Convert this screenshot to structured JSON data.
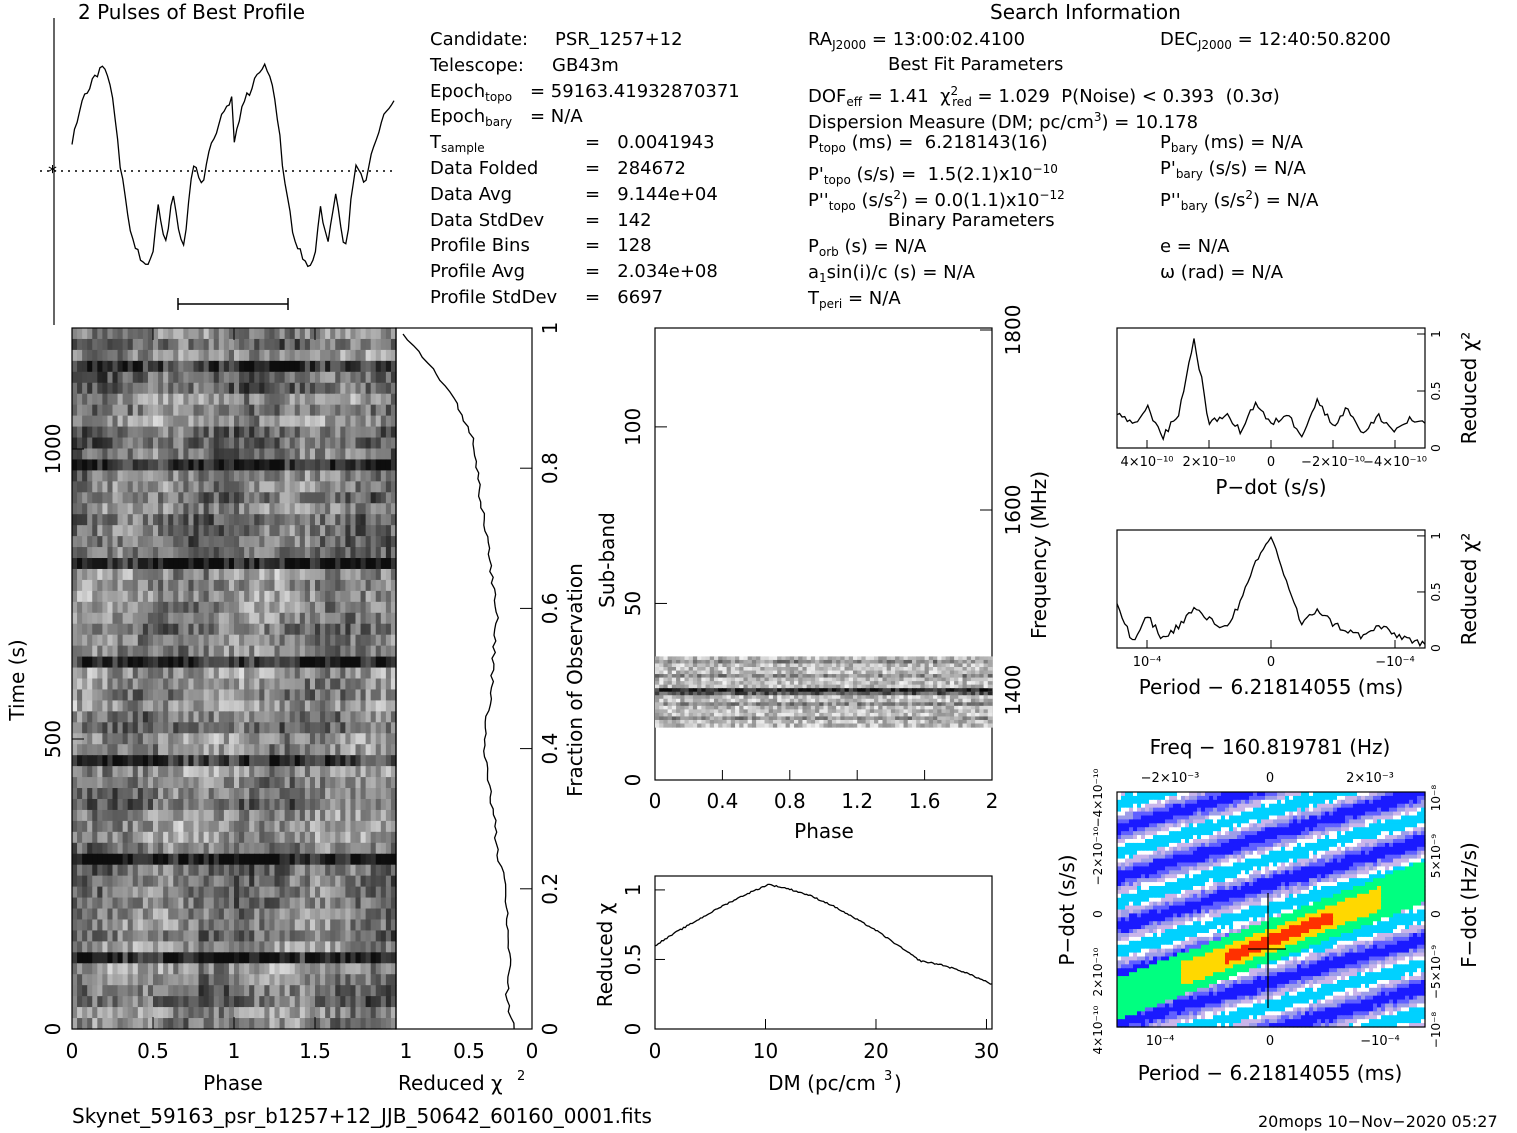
{
  "profile_title": "2 Pulses of Best Profile",
  "search_title": "Search Information",
  "candidate_info": [
    {
      "label": "Candidate:",
      "value": "PSR_1257+12"
    },
    {
      "label": "Telescope:",
      "value": "GB43m"
    },
    {
      "label": "Epoch_topo",
      "value": "= 59163.41932870371"
    },
    {
      "label": "Epoch_bary",
      "value": "= N/A"
    },
    {
      "label": "T_sample",
      "value": "=   0.0041943"
    },
    {
      "label": "Data Folded",
      "value": "=   284672"
    },
    {
      "label": "Data Avg",
      "value": "=   9.144e+04"
    },
    {
      "label": "Data StdDev",
      "value": "=   142"
    },
    {
      "label": "Profile Bins",
      "value": "=   128"
    },
    {
      "label": "Profile Avg",
      "value": "=   2.034e+08"
    },
    {
      "label": "Profile StdDev",
      "value": "=   6697"
    }
  ],
  "search_info": {
    "ra": "RA_J2000 = 13:00:02.4100",
    "dec": "DEC_J2000 = 12:40:50.8200",
    "best_fit_heading": "Best Fit Parameters",
    "dof": "DOF_eff = 1.41  χ²_red = 1.029  P(Noise) < 0.393  (0.3σ)",
    "dm": "Dispersion Measure (DM; pc/cm³) = 10.178",
    "p_topo": "P_topo (ms) =  6.218143(16)",
    "p_bary": "P_bary (ms) = N/A",
    "pd_topo": "P'_topo (s/s) =  1.5(2.1)×10⁻¹⁰",
    "pd_bary": "P'_bary (s/s) = N/A",
    "pdd_topo": "P''_topo (s/s²) = 0.0(1.1)×10⁻¹²",
    "pdd_bary": "P''_bary (s/s²) = N/A",
    "binary_heading": "Binary Parameters",
    "porb": "P_orb (s) = N/A",
    "e": "e = N/A",
    "a1sini": "a1sin(i)/c (s) = N/A",
    "omega": "ω (rad) = N/A",
    "tperi": "T_peri = N/A"
  },
  "footer": {
    "filename": "Skynet_59163_psr_b1257+12_JJB_50642_60160_0001.fits",
    "stamp": "20mops 10−Nov−2020 05:27"
  },
  "chart_data": [
    {
      "name": "profile",
      "type": "line",
      "title": "2 Pulses of Best Profile",
      "xlim": [
        0,
        2
      ],
      "values": [
        0.62,
        0.68,
        0.72,
        0.78,
        0.82,
        0.85,
        0.84,
        0.88,
        0.92,
        0.94,
        0.93,
        0.96,
        0.98,
        0.95,
        0.93,
        0.88,
        0.82,
        0.74,
        0.65,
        0.52,
        0.45,
        0.38,
        0.3,
        0.22,
        0.18,
        0.14,
        0.15,
        0.1,
        0.08,
        0.07,
        0.08,
        0.09,
        0.12,
        0.24,
        0.34,
        0.27,
        0.22,
        0.18,
        0.24,
        0.33,
        0.38,
        0.32,
        0.24,
        0.18,
        0.16,
        0.24,
        0.36,
        0.45,
        0.52,
        0.5,
        0.47,
        0.44,
        0.46,
        0.52,
        0.58,
        0.62,
        0.64,
        0.68,
        0.71,
        0.74,
        0.76,
        0.78,
        0.8,
        0.82,
        0.62,
        0.68,
        0.72,
        0.78,
        0.82,
        0.85,
        0.84,
        0.88,
        0.92,
        0.94,
        0.93,
        0.96,
        0.98,
        0.95,
        0.93,
        0.88,
        0.82,
        0.74,
        0.65,
        0.52,
        0.45,
        0.38,
        0.3,
        0.22,
        0.18,
        0.14,
        0.15,
        0.1,
        0.08,
        0.07,
        0.08,
        0.09,
        0.12,
        0.24,
        0.34,
        0.27,
        0.22,
        0.18,
        0.24,
        0.33,
        0.38,
        0.32,
        0.24,
        0.18,
        0.16,
        0.24,
        0.36,
        0.45,
        0.52,
        0.5,
        0.47,
        0.44,
        0.46,
        0.52,
        0.58,
        0.62,
        0.64,
        0.68,
        0.71,
        0.74,
        0.76,
        0.78,
        0.8,
        0.82
      ],
      "duty_bar": [
        0.65,
        1.35
      ]
    },
    {
      "name": "time-vs-phase",
      "type": "heatmap",
      "xlabel": "Phase",
      "ylabel": "Time (s)",
      "xlim": [
        0,
        2
      ],
      "ylim": [
        0,
        1194
      ],
      "xticks": [
        "0",
        "0.5",
        "1",
        "1.5"
      ],
      "yticks": [
        "0",
        "500",
        "1000"
      ]
    },
    {
      "name": "chi-vs-fraction",
      "type": "line",
      "xlabel": "Reduced χ²",
      "ylabel": "Fraction of Observation",
      "xticks": [
        "1",
        "0.5",
        "0"
      ],
      "yticks": [
        "0",
        "0.2",
        "0.4",
        "0.6",
        "0.8",
        "1"
      ],
      "fraction": [
        0,
        0.02,
        0.05,
        0.1,
        0.15,
        0.2,
        0.25,
        0.3,
        0.35,
        0.4,
        0.45,
        0.5,
        0.55,
        0.6,
        0.65,
        0.7,
        0.75,
        0.8,
        0.85,
        0.9,
        0.95,
        0.98,
        1.0
      ],
      "chi": [
        0.05,
        0.1,
        0.12,
        0.1,
        0.13,
        0.12,
        0.2,
        0.22,
        0.26,
        0.3,
        0.28,
        0.24,
        0.22,
        0.2,
        0.24,
        0.28,
        0.32,
        0.36,
        0.4,
        0.52,
        0.72,
        0.85,
        0.95
      ]
    },
    {
      "name": "subband-vs-phase",
      "type": "heatmap",
      "xlabel": "Phase",
      "ylabel": "Sub-band",
      "y2label": "Frequency (MHz)",
      "xlim": [
        0,
        2
      ],
      "ylim": [
        0,
        128
      ],
      "xticks": [
        "0",
        "0.4",
        "0.8",
        "1.2",
        "1.6",
        "2"
      ],
      "yticks": [
        "0",
        "50",
        "100"
      ],
      "y2ticks": [
        "1400",
        "1600",
        "1800"
      ],
      "active_band": [
        15,
        35
      ]
    },
    {
      "name": "chi-vs-dm",
      "type": "line",
      "xlabel": "DM (pc/cm³)",
      "ylabel": "Reduced χ²",
      "xlim": [
        0,
        30.5
      ],
      "ylim": [
        0,
        1.1
      ],
      "xticks": [
        "0",
        "10",
        "20",
        "30"
      ],
      "yticks": [
        "0",
        "0.5",
        "1"
      ],
      "x": [
        0,
        2,
        4,
        6,
        8,
        10,
        10.2,
        12,
        14,
        16,
        18,
        20,
        22,
        24,
        26,
        28,
        30,
        30.5
      ],
      "y": [
        0.6,
        0.7,
        0.79,
        0.88,
        0.96,
        1.03,
        1.04,
        1.01,
        0.96,
        0.89,
        0.8,
        0.71,
        0.6,
        0.49,
        0.46,
        0.41,
        0.34,
        0.32
      ]
    },
    {
      "name": "chi-vs-pdot",
      "type": "line",
      "xlabel": "P−dot (s/s)",
      "ylabel": "Reduced χ²",
      "xticks": [
        "4×10⁻¹⁰",
        "2×10⁻¹⁰",
        "0",
        "−2×10⁻¹⁰",
        "−4×10⁻¹⁰"
      ],
      "yticks": [
        "0",
        "0.5",
        "1"
      ],
      "x": [
        -1,
        -0.9,
        -0.8,
        -0.7,
        -0.6,
        -0.5,
        -0.45,
        -0.4,
        -0.3,
        -0.2,
        -0.1,
        0,
        0.1,
        0.2,
        0.3,
        0.4,
        0.5,
        0.6,
        0.7,
        0.8,
        0.9,
        1
      ],
      "y": [
        0.3,
        0.2,
        0.35,
        0.1,
        0.3,
        0.95,
        0.6,
        0.2,
        0.3,
        0.15,
        0.4,
        0.2,
        0.3,
        0.12,
        0.42,
        0.2,
        0.35,
        0.12,
        0.28,
        0.15,
        0.25,
        0.2
      ]
    },
    {
      "name": "chi-vs-period",
      "type": "line",
      "xlabel": "Period − 6.21814055 (ms)",
      "ylabel": "Reduced χ²",
      "xticks": [
        "10⁻⁴",
        "0",
        "−10⁻⁴"
      ],
      "yticks": [
        "0",
        "0.5",
        "1"
      ],
      "x": [
        -1,
        -0.9,
        -0.8,
        -0.7,
        -0.6,
        -0.5,
        -0.4,
        -0.3,
        -0.2,
        -0.1,
        0,
        0.1,
        0.2,
        0.3,
        0.4,
        0.5,
        0.6,
        0.7,
        0.8,
        0.9,
        1
      ],
      "y": [
        0.4,
        0.05,
        0.28,
        0.08,
        0.2,
        0.35,
        0.25,
        0.18,
        0.4,
        0.75,
        1.0,
        0.6,
        0.2,
        0.35,
        0.22,
        0.15,
        0.1,
        0.2,
        0.12,
        0.08,
        0.02
      ]
    },
    {
      "name": "pdot-vs-period",
      "type": "heatmap",
      "title": "Freq − 160.819781 (Hz)",
      "xlabel": "Period − 6.21814055 (ms)",
      "ylabel": "P−dot (s/s)",
      "y2label": "F−dot (Hz/s)",
      "top_ticks": [
        "−2×10⁻³",
        "0",
        "2×10⁻³"
      ],
      "xticks": [
        "10⁻⁴",
        "0",
        "−10⁻⁴"
      ],
      "yticks": [
        "4×10⁻¹⁰",
        "2×10⁻¹⁰",
        "0",
        "−2×10⁻¹⁰",
        "−4×10⁻¹⁰"
      ],
      "y2ticks": [
        "−10⁻⁸",
        "−5×10⁻⁹",
        "0",
        "5×10⁻⁹",
        "10⁻⁸"
      ],
      "colors": [
        "#1a1aff",
        "#6060ff",
        "#9d9de8",
        "#c9b5ea",
        "#ffffff",
        "#00d1ff",
        "#00ff80",
        "#ffd800",
        "#ff3000"
      ]
    }
  ]
}
